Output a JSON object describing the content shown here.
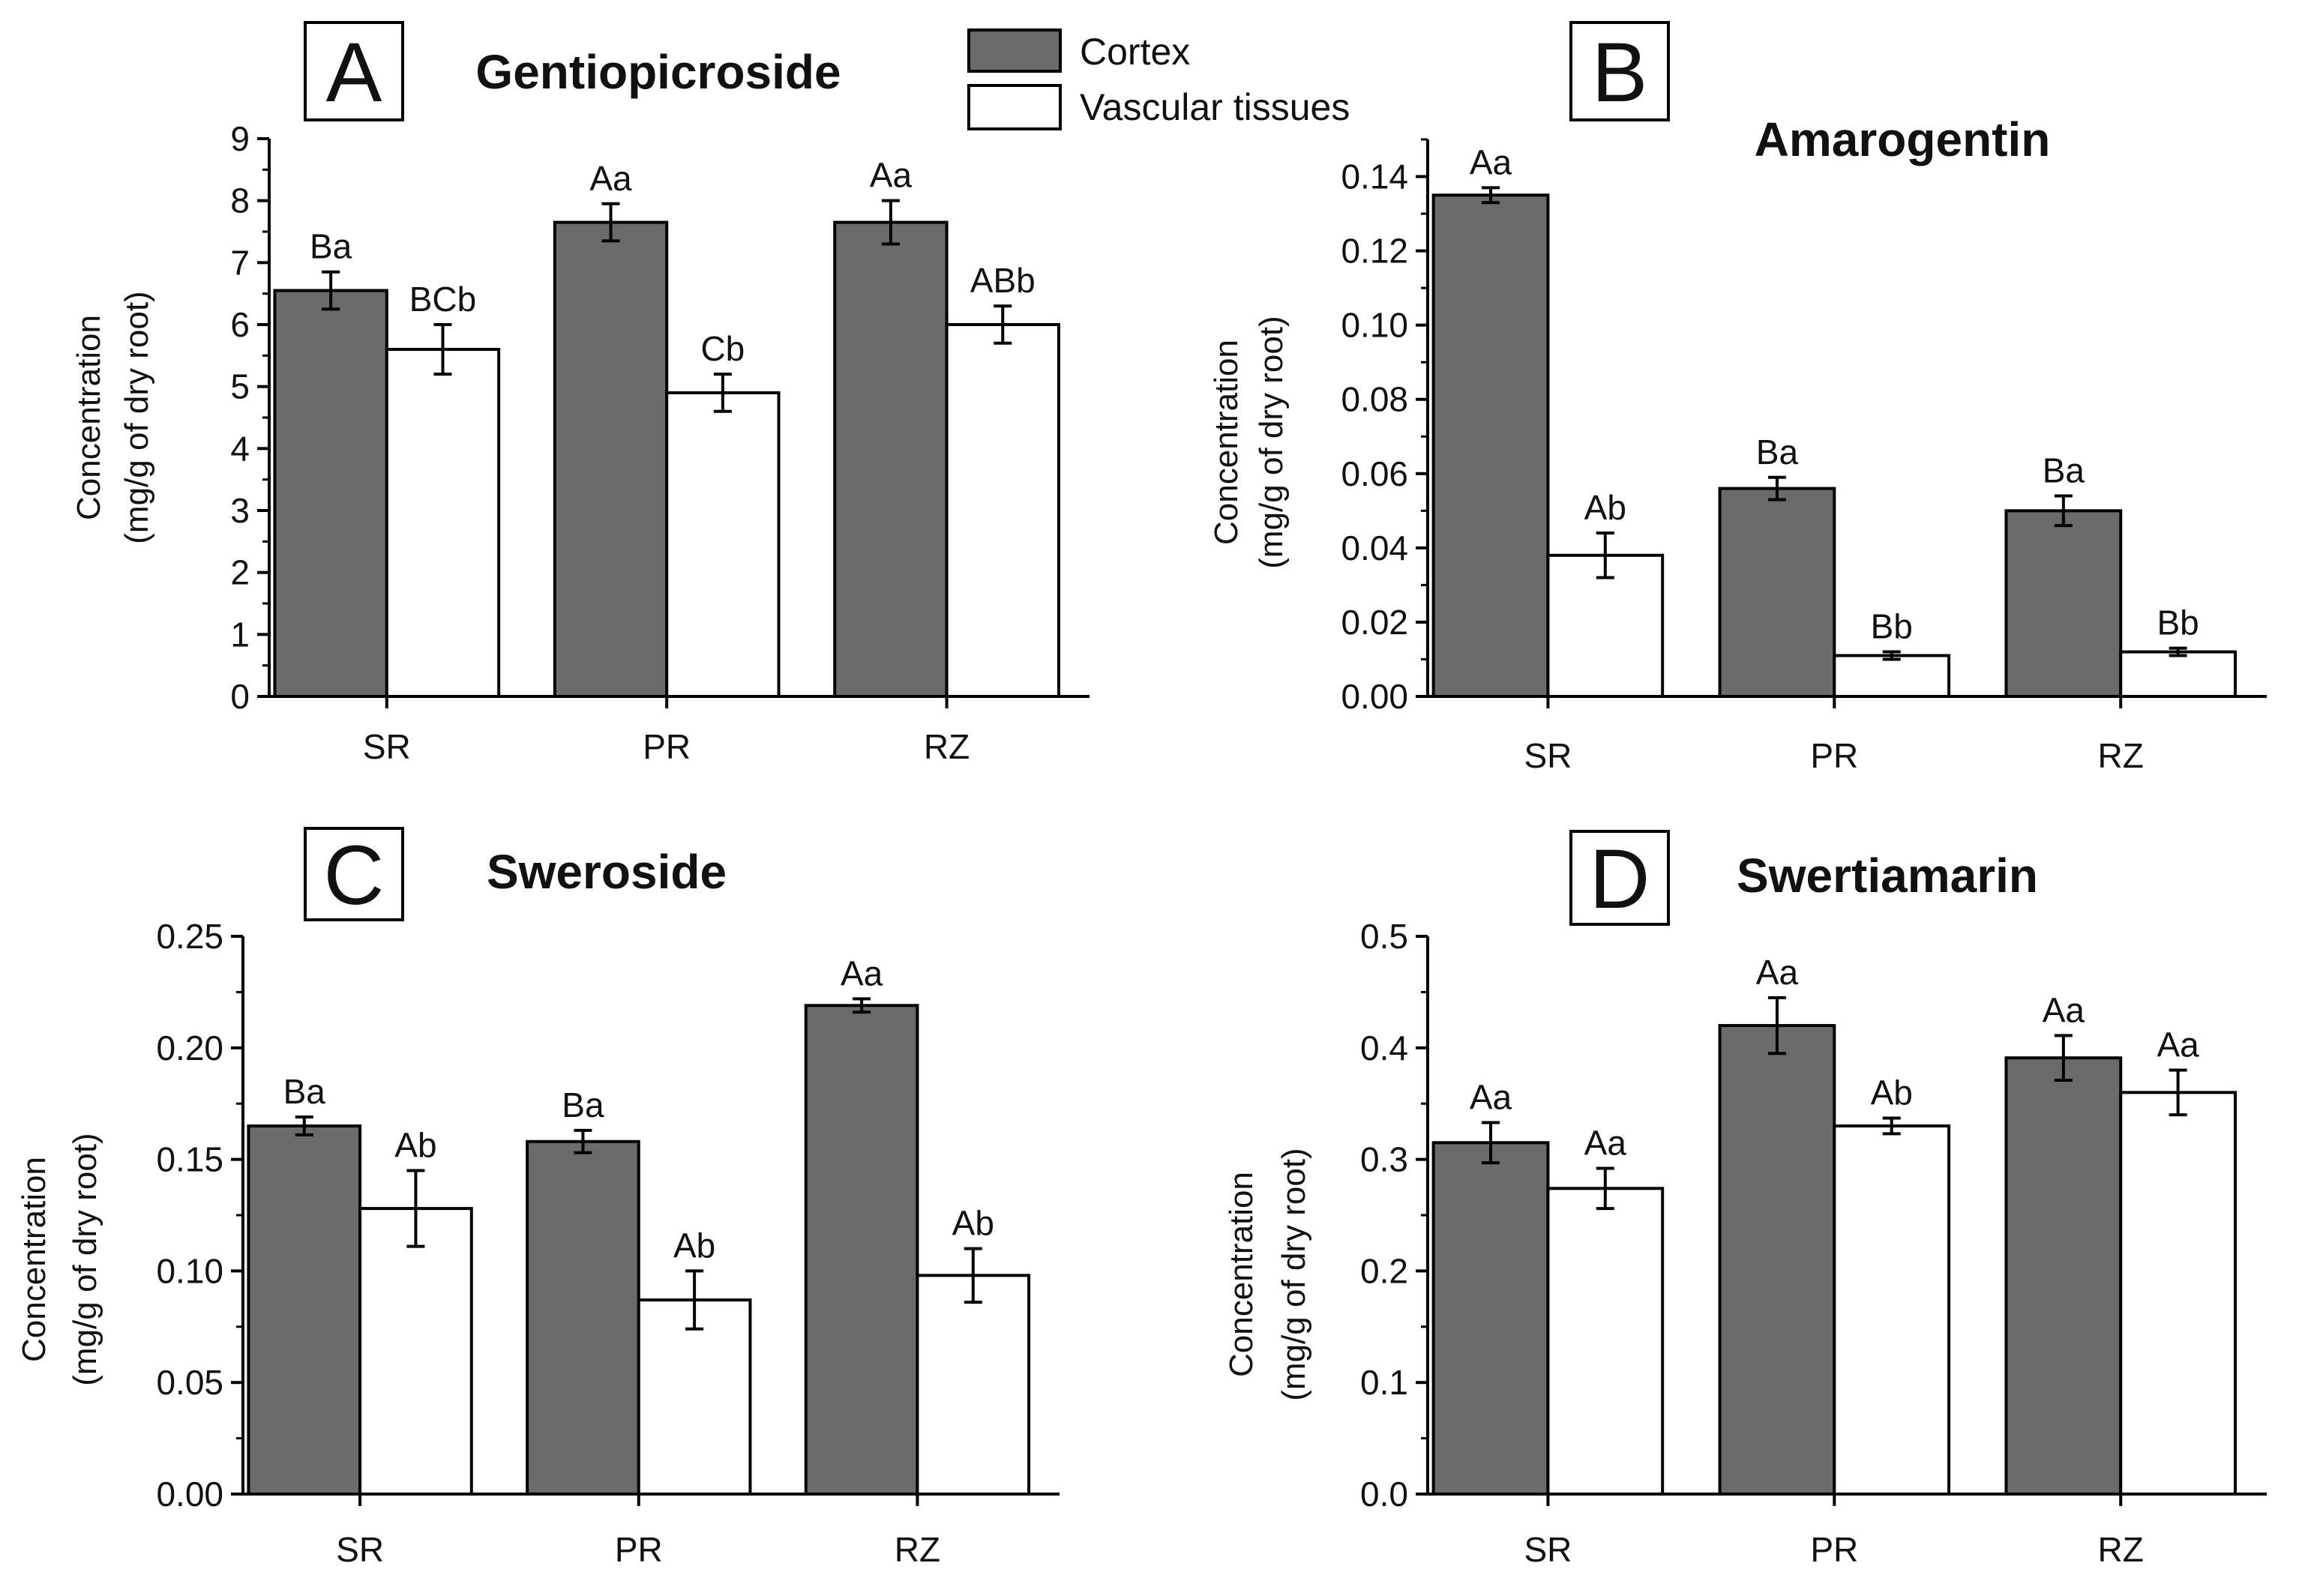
{
  "legend": {
    "items": [
      {
        "label": "Cortex",
        "color": "#6b6b6b"
      },
      {
        "label": "Vascular tissues",
        "color": "#ffffff"
      }
    ]
  },
  "chart_data": [
    {
      "type": "bar",
      "panel": "A",
      "title": "Gentiopicroside",
      "categories": [
        "SR",
        "PR",
        "RZ"
      ],
      "ylabel": [
        "Concentration",
        "(mg/g of dry root)"
      ],
      "ylim": [
        0,
        9
      ],
      "yticks": [
        "0",
        "1",
        "2",
        "3",
        "4",
        "5",
        "6",
        "7",
        "8",
        "9"
      ],
      "series": [
        {
          "name": "Cortex",
          "values": [
            6.55,
            7.65,
            7.65
          ],
          "errors": [
            0.3,
            0.3,
            0.35
          ],
          "labels": [
            "Ba",
            "Aa",
            "Aa"
          ]
        },
        {
          "name": "Vascular tissues",
          "values": [
            5.6,
            4.9,
            6.0
          ],
          "errors": [
            0.4,
            0.3,
            0.3
          ],
          "labels": [
            "BCb",
            "Cb",
            "ABb"
          ]
        }
      ]
    },
    {
      "type": "bar",
      "panel": "B",
      "title": "Amarogentin",
      "categories": [
        "SR",
        "PR",
        "RZ"
      ],
      "ylabel": [
        "Concentration",
        "(mg/g of dry root)"
      ],
      "ylim": [
        0,
        0.15
      ],
      "yticks": [
        "0.00",
        "0.02",
        "0.04",
        "0.06",
        "0.08",
        "0.10",
        "0.12",
        "0.14"
      ],
      "series": [
        {
          "name": "Cortex",
          "values": [
            0.135,
            0.056,
            0.05
          ],
          "errors": [
            0.002,
            0.003,
            0.004
          ],
          "labels": [
            "Aa",
            "Ba",
            "Ba"
          ]
        },
        {
          "name": "Vascular tissues",
          "values": [
            0.038,
            0.011,
            0.012
          ],
          "errors": [
            0.006,
            0.001,
            0.001
          ],
          "labels": [
            "Ab",
            "Bb",
            "Bb"
          ]
        }
      ]
    },
    {
      "type": "bar",
      "panel": "C",
      "title": "Sweroside",
      "categories": [
        "SR",
        "PR",
        "RZ"
      ],
      "ylabel": [
        "Concentration",
        "(mg/g of dry root)"
      ],
      "ylim": [
        0,
        0.25
      ],
      "yticks": [
        "0.00",
        "0.05",
        "0.10",
        "0.15",
        "0.20",
        "0.25"
      ],
      "series": [
        {
          "name": "Cortex",
          "values": [
            0.165,
            0.158,
            0.219
          ],
          "errors": [
            0.004,
            0.005,
            0.003
          ],
          "labels": [
            "Ba",
            "Ba",
            "Aa"
          ]
        },
        {
          "name": "Vascular tissues",
          "values": [
            0.128,
            0.087,
            0.098
          ],
          "errors": [
            0.017,
            0.013,
            0.012
          ],
          "labels": [
            "Ab",
            "Ab",
            "Ab"
          ]
        }
      ]
    },
    {
      "type": "bar",
      "panel": "D",
      "title": "Swertiamarin",
      "categories": [
        "SR",
        "PR",
        "RZ"
      ],
      "ylabel": [
        "Concentration",
        "(mg/g of dry root)"
      ],
      "ylim": [
        0,
        0.5
      ],
      "yticks": [
        "0.0",
        "0.1",
        "0.2",
        "0.3",
        "0.4",
        "0.5"
      ],
      "series": [
        {
          "name": "Cortex",
          "values": [
            0.315,
            0.42,
            0.391
          ],
          "errors": [
            0.018,
            0.025,
            0.02
          ],
          "labels": [
            "Aa",
            "Aa",
            "Aa"
          ]
        },
        {
          "name": "Vascular tissues",
          "values": [
            0.274,
            0.33,
            0.36
          ],
          "errors": [
            0.018,
            0.007,
            0.02
          ],
          "labels": [
            "Aa",
            "Ab",
            "Aa"
          ]
        }
      ]
    }
  ]
}
